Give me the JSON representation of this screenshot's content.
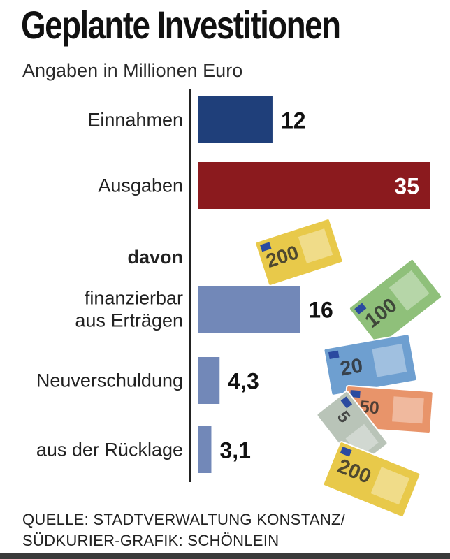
{
  "title": "Geplante Investitionen",
  "subtitle": "Angaben in Millionen Euro",
  "source": {
    "line1": "QUELLE: STADTVERWALTUNG KONSTANZ/",
    "line2": "SÜDKURIER-GRAFIK: SCHÖNLEIN"
  },
  "colors": {
    "einnahmen": "#1f3f7a",
    "ausgaben": "#8b1a1e",
    "davon": "#7288b8",
    "axis": "#222222"
  },
  "chart_data": {
    "type": "bar",
    "orientation": "horizontal",
    "title": "Geplante Investitionen",
    "subtitle": "Angaben in Millionen Euro",
    "xlim": [
      0,
      35
    ],
    "grid": false,
    "categories": [
      {
        "lines": [
          "Einnahmen"
        ],
        "value": 12,
        "value_label": "12",
        "color_key": "einnahmen"
      },
      {
        "lines": [
          "Ausgaben"
        ],
        "value": 35,
        "value_label": "35",
        "color_key": "ausgaben",
        "label_inside": true
      },
      {
        "lines": [
          "davon"
        ],
        "value": null,
        "value_label": "",
        "heading": true
      },
      {
        "lines": [
          "finanzierbar",
          "aus Erträgen"
        ],
        "value": 16,
        "value_label": "16",
        "color_key": "davon"
      },
      {
        "lines": [
          "Neuverschuldung"
        ],
        "value": 4.3,
        "value_label": "4,3",
        "color_key": "davon"
      },
      {
        "lines": [
          "aus der Rücklage"
        ],
        "value": 3.1,
        "value_label": "3,1",
        "color_key": "davon"
      }
    ]
  },
  "decor": {
    "banknotes": [
      {
        "denomination": "200",
        "icon": "banknote-200-icon",
        "color": "#e8c94a"
      },
      {
        "denomination": "100",
        "icon": "banknote-100-icon",
        "color": "#8fc07a"
      },
      {
        "denomination": "20",
        "icon": "banknote-20-icon",
        "color": "#6e9fd0"
      },
      {
        "denomination": "50",
        "icon": "banknote-50-icon",
        "color": "#e8946a"
      },
      {
        "denomination": "5",
        "icon": "banknote-5-icon",
        "color": "#b9c4b8"
      },
      {
        "denomination": "200",
        "icon": "banknote-200-icon",
        "color": "#e8c94a"
      }
    ]
  }
}
